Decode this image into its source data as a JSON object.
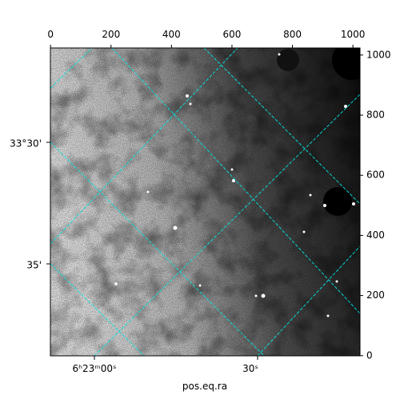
{
  "chart_data": {
    "type": "image",
    "xlabel": "pos.eq.ra",
    "xlim": [
      -0.5,
      1023.5
    ],
    "ylim": [
      -0.5,
      1023.5
    ],
    "xticks": [
      0,
      200,
      400,
      600,
      800,
      1000
    ],
    "yticks": [
      0,
      200,
      400,
      600,
      800,
      1000
    ],
    "ra_ticks": [
      "6ʰ23ᵐ00ˢ",
      "30ˢ"
    ],
    "dec_ticks": [
      "33°30'",
      "35'"
    ],
    "grid_color": "#00e5e5"
  }
}
